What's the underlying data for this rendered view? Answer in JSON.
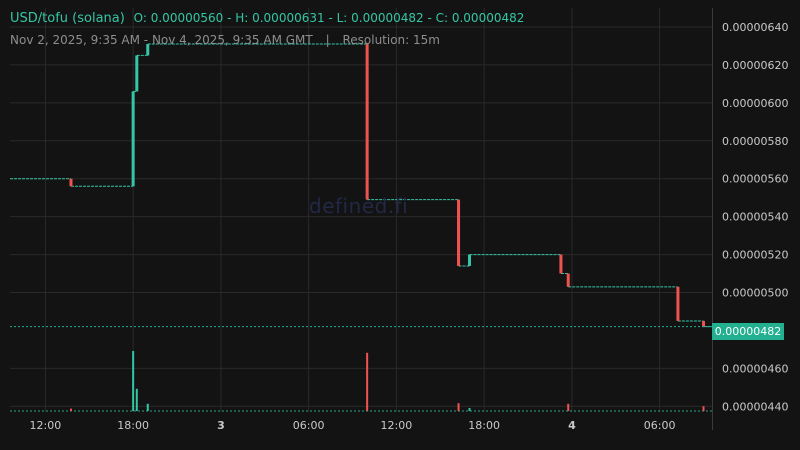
{
  "header": {
    "pair": "USD/tofu (solana)",
    "ohlc": "O: 0.00000560 - H: 0.00000631 - L: 0.00000482 - C: 0.00000482",
    "range": "Nov 2, 2025, 9:35 AM - Nov 4, 2025, 9:35 AM GMT",
    "separator": "|",
    "resolution": "Resolution: 15m"
  },
  "watermark": "defined.fi",
  "last_price_label": "0.00000482",
  "colors": {
    "background": "#131313",
    "grid": "#2a2a2a",
    "up": "#35c6a5",
    "down": "#ef5350",
    "last_price": "#22b091",
    "text": "#c9c9c9"
  },
  "chart_data": {
    "type": "line",
    "title": "",
    "xlabel": "",
    "ylabel": "",
    "x_ticks": [
      "12:00",
      "18:00",
      "3",
      "06:00",
      "12:00",
      "18:00",
      "4",
      "06:00"
    ],
    "x_tick_hours": [
      12,
      18,
      24,
      30,
      36,
      42,
      48,
      54
    ],
    "y_ticks": [
      "0.00000640",
      "0.00000620",
      "0.00000600",
      "0.00000580",
      "0.00000560",
      "0.00000540",
      "0.00000520",
      "0.00000500",
      "0.00000460",
      "0.00000440"
    ],
    "ylim": [
      4.37e-06,
      6.5e-06
    ],
    "xlim_hours": [
      9.58,
      57.58
    ],
    "grid": true,
    "last_price": 4.82e-06,
    "price_series": {
      "name": "",
      "points": [
        {
          "hour": 9.58,
          "price": 5.6e-06
        },
        {
          "hour": 13.75,
          "price": 5.6e-06
        },
        {
          "hour": 13.75,
          "price": 5.56e-06
        },
        {
          "hour": 18.0,
          "price": 5.56e-06
        },
        {
          "hour": 18.0,
          "price": 6.06e-06
        },
        {
          "hour": 18.25,
          "price": 6.06e-06
        },
        {
          "hour": 18.25,
          "price": 6.25e-06
        },
        {
          "hour": 19.0,
          "price": 6.25e-06
        },
        {
          "hour": 19.0,
          "price": 6.31e-06
        },
        {
          "hour": 34.0,
          "price": 6.31e-06
        },
        {
          "hour": 34.0,
          "price": 5.49e-06
        },
        {
          "hour": 40.25,
          "price": 5.49e-06
        },
        {
          "hour": 40.25,
          "price": 5.14e-06
        },
        {
          "hour": 41.0,
          "price": 5.14e-06
        },
        {
          "hour": 41.0,
          "price": 5.2e-06
        },
        {
          "hour": 47.25,
          "price": 5.2e-06
        },
        {
          "hour": 47.25,
          "price": 5.1e-06
        },
        {
          "hour": 47.75,
          "price": 5.1e-06
        },
        {
          "hour": 47.75,
          "price": 5.03e-06
        },
        {
          "hour": 55.25,
          "price": 5.03e-06
        },
        {
          "hour": 55.25,
          "price": 4.85e-06
        },
        {
          "hour": 57.0,
          "price": 4.85e-06
        },
        {
          "hour": 57.0,
          "price": 4.82e-06
        },
        {
          "hour": 57.58,
          "price": 4.82e-06
        }
      ]
    },
    "candles": [
      {
        "hour": 13.75,
        "open": 5.6e-06,
        "close": 5.56e-06
      },
      {
        "hour": 18.0,
        "open": 5.56e-06,
        "close": 6.06e-06
      },
      {
        "hour": 18.25,
        "open": 6.06e-06,
        "close": 6.25e-06
      },
      {
        "hour": 19.0,
        "open": 6.25e-06,
        "close": 6.31e-06
      },
      {
        "hour": 34.0,
        "open": 6.31e-06,
        "close": 5.49e-06
      },
      {
        "hour": 40.25,
        "open": 5.49e-06,
        "close": 5.14e-06
      },
      {
        "hour": 41.0,
        "open": 5.14e-06,
        "close": 5.2e-06
      },
      {
        "hour": 47.25,
        "open": 5.2e-06,
        "close": 5.1e-06
      },
      {
        "hour": 47.75,
        "open": 5.1e-06,
        "close": 5.03e-06
      },
      {
        "hour": 55.25,
        "open": 5.03e-06,
        "close": 4.85e-06
      },
      {
        "hour": 57.0,
        "open": 4.85e-06,
        "close": 4.82e-06
      }
    ],
    "volume_series": {
      "name": "",
      "unit_scale": "relative (0-1)",
      "bars": [
        {
          "hour": 13.75,
          "volume": 0.04,
          "direction": "down"
        },
        {
          "hour": 18.0,
          "volume": 1.0,
          "direction": "up"
        },
        {
          "hour": 18.25,
          "volume": 0.37,
          "direction": "up"
        },
        {
          "hour": 19.0,
          "volume": 0.12,
          "direction": "up"
        },
        {
          "hour": 34.0,
          "volume": 0.97,
          "direction": "down"
        },
        {
          "hour": 40.25,
          "volume": 0.13,
          "direction": "down"
        },
        {
          "hour": 41.0,
          "volume": 0.05,
          "direction": "up"
        },
        {
          "hour": 47.75,
          "volume": 0.12,
          "direction": "down"
        },
        {
          "hour": 57.0,
          "volume": 0.08,
          "direction": "down"
        }
      ]
    }
  }
}
